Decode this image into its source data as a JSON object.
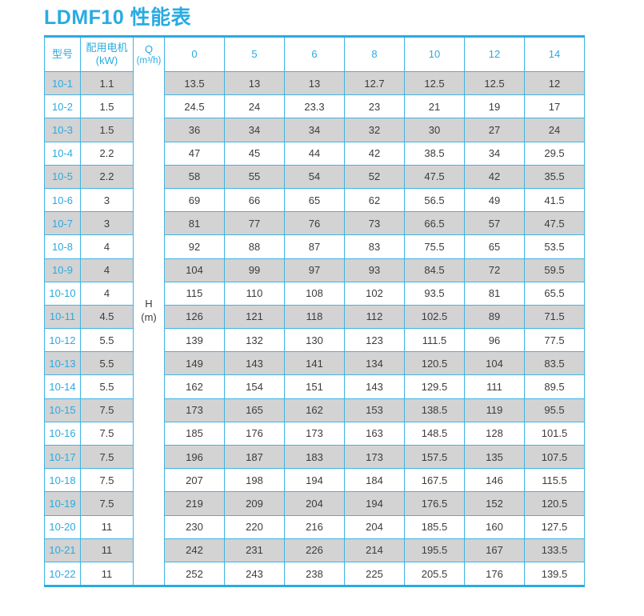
{
  "title": "LDMF10 性能表",
  "colors": {
    "accent": "#29abe2",
    "grid": "#41b2e2",
    "stripe": "#d3d3d3",
    "text": "#3c3c3c"
  },
  "table": {
    "headers": {
      "model": "型号",
      "motor_line1": "配用电机",
      "motor_line2": "(kW)",
      "q_line1": "Q",
      "q_line2": "(m³/h)",
      "flow_columns": [
        "0",
        "5",
        "6",
        "8",
        "10",
        "12",
        "14"
      ]
    },
    "h_line1": "H",
    "h_line2": "(m)",
    "rows": [
      {
        "model": "10-1",
        "kw": "1.1",
        "values": [
          "13.5",
          "13",
          "13",
          "12.7",
          "12.5",
          "12.5",
          "12"
        ]
      },
      {
        "model": "10-2",
        "kw": "1.5",
        "values": [
          "24.5",
          "24",
          "23.3",
          "23",
          "21",
          "19",
          "17"
        ]
      },
      {
        "model": "10-3",
        "kw": "1.5",
        "values": [
          "36",
          "34",
          "34",
          "32",
          "30",
          "27",
          "24"
        ]
      },
      {
        "model": "10-4",
        "kw": "2.2",
        "values": [
          "47",
          "45",
          "44",
          "42",
          "38.5",
          "34",
          "29.5"
        ]
      },
      {
        "model": "10-5",
        "kw": "2.2",
        "values": [
          "58",
          "55",
          "54",
          "52",
          "47.5",
          "42",
          "35.5"
        ]
      },
      {
        "model": "10-6",
        "kw": "3",
        "values": [
          "69",
          "66",
          "65",
          "62",
          "56.5",
          "49",
          "41.5"
        ]
      },
      {
        "model": "10-7",
        "kw": "3",
        "values": [
          "81",
          "77",
          "76",
          "73",
          "66.5",
          "57",
          "47.5"
        ]
      },
      {
        "model": "10-8",
        "kw": "4",
        "values": [
          "92",
          "88",
          "87",
          "83",
          "75.5",
          "65",
          "53.5"
        ]
      },
      {
        "model": "10-9",
        "kw": "4",
        "values": [
          "104",
          "99",
          "97",
          "93",
          "84.5",
          "72",
          "59.5"
        ]
      },
      {
        "model": "10-10",
        "kw": "4",
        "values": [
          "115",
          "110",
          "108",
          "102",
          "93.5",
          "81",
          "65.5"
        ]
      },
      {
        "model": "10-11",
        "kw": "4.5",
        "values": [
          "126",
          "121",
          "118",
          "112",
          "102.5",
          "89",
          "71.5"
        ]
      },
      {
        "model": "10-12",
        "kw": "5.5",
        "values": [
          "139",
          "132",
          "130",
          "123",
          "111.5",
          "96",
          "77.5"
        ]
      },
      {
        "model": "10-13",
        "kw": "5.5",
        "values": [
          "149",
          "143",
          "141",
          "134",
          "120.5",
          "104",
          "83.5"
        ]
      },
      {
        "model": "10-14",
        "kw": "5.5",
        "values": [
          "162",
          "154",
          "151",
          "143",
          "129.5",
          "111",
          "89.5"
        ]
      },
      {
        "model": "10-15",
        "kw": "7.5",
        "values": [
          "173",
          "165",
          "162",
          "153",
          "138.5",
          "119",
          "95.5"
        ]
      },
      {
        "model": "10-16",
        "kw": "7.5",
        "values": [
          "185",
          "176",
          "173",
          "163",
          "148.5",
          "128",
          "101.5"
        ]
      },
      {
        "model": "10-17",
        "kw": "7.5",
        "values": [
          "196",
          "187",
          "183",
          "173",
          "157.5",
          "135",
          "107.5"
        ]
      },
      {
        "model": "10-18",
        "kw": "7.5",
        "values": [
          "207",
          "198",
          "194",
          "184",
          "167.5",
          "146",
          "115.5"
        ]
      },
      {
        "model": "10-19",
        "kw": "7.5",
        "values": [
          "219",
          "209",
          "204",
          "194",
          "176.5",
          "152",
          "120.5"
        ]
      },
      {
        "model": "10-20",
        "kw": "11",
        "values": [
          "230",
          "220",
          "216",
          "204",
          "185.5",
          "160",
          "127.5"
        ]
      },
      {
        "model": "10-21",
        "kw": "11",
        "values": [
          "242",
          "231",
          "226",
          "214",
          "195.5",
          "167",
          "133.5"
        ]
      },
      {
        "model": "10-22",
        "kw": "11",
        "values": [
          "252",
          "243",
          "238",
          "225",
          "205.5",
          "176",
          "139.5"
        ]
      }
    ]
  }
}
